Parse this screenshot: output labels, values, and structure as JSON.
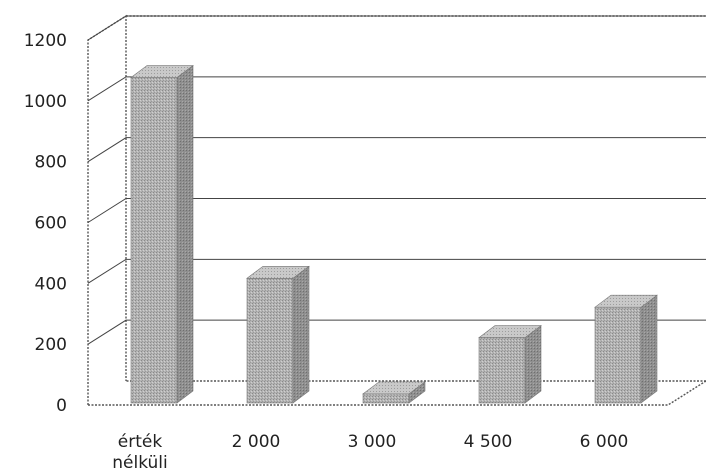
{
  "chart_data": {
    "type": "bar",
    "title": "",
    "xlabel": "",
    "ylabel": "",
    "categories": [
      "érték nélküli",
      "2 000",
      "3 000",
      "4 500",
      "6 000"
    ],
    "category_lines": [
      [
        "érték",
        "nélküli"
      ],
      [
        "2 000"
      ],
      [
        "3 000"
      ],
      [
        "4 500"
      ],
      [
        "6 000"
      ]
    ],
    "values": [
      1070,
      410,
      30,
      215,
      315
    ],
    "ylim": [
      0,
      1200
    ],
    "yticks": [
      0,
      200,
      400,
      600,
      800,
      1000,
      1200
    ],
    "grid": true,
    "legend": "none",
    "bar_color": "#a6a6a6"
  }
}
